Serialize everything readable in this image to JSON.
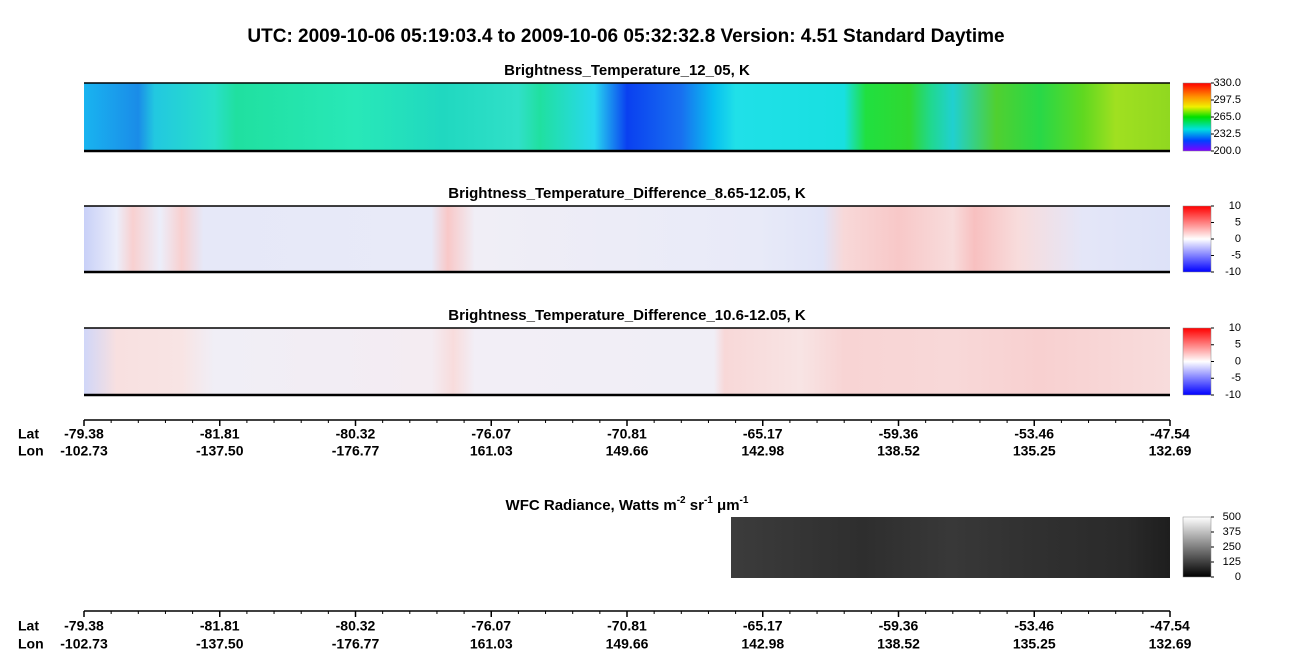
{
  "chart_data": {
    "type": "heatmap-browse",
    "title": "UTC:  2009-10-06   05:19:03.4  to  2009-10-06   05:32:32.8    Version: 4.51  Standard Daytime",
    "panels": [
      {
        "title": "Brightness_Temperature_12_05, K",
        "colorbar": {
          "ylim": [
            200,
            330
          ],
          "yticks": [
            {
              "value": 330,
              "label": "330.0"
            },
            297.5,
            {
              "value": 265,
              "label": "265.0"
            },
            232.5,
            {
              "value": 200,
              "label": "200.0"
            }
          ]
        }
      },
      {
        "title": "Brightness_Temperature_Difference_8.65-12.05, K",
        "colorbar": {
          "ylim": [
            -10,
            10
          ],
          "yticks": [
            10,
            5,
            0,
            -5,
            -10
          ]
        }
      },
      {
        "title": "Brightness_Temperature_Difference_10.6-12.05, K",
        "colorbar": {
          "ylim": [
            -10,
            10
          ],
          "yticks": [
            10,
            5,
            0,
            -5,
            -10
          ]
        }
      }
    ],
    "wfc": {
      "title_parts": [
        "WFC Radiance, Watts m",
        "-2",
        " sr",
        "-1",
        " μm",
        "-1"
      ],
      "colorbar": {
        "ylim": [
          0,
          500
        ],
        "yticks": [
          500,
          375,
          250,
          125,
          0
        ]
      }
    },
    "track_axis": {
      "lat_label": "Lat",
      "lon_label": "Lon",
      "lat": [
        "-79.38",
        "-81.81",
        "-80.32",
        "-76.07",
        "-70.81",
        "-65.17",
        "-59.36",
        "-53.46",
        "-47.54"
      ],
      "lon": [
        "-102.73",
        "-137.50",
        "-176.77",
        "161.03",
        "149.66",
        "142.98",
        "138.52",
        "135.25",
        "132.69"
      ]
    }
  }
}
